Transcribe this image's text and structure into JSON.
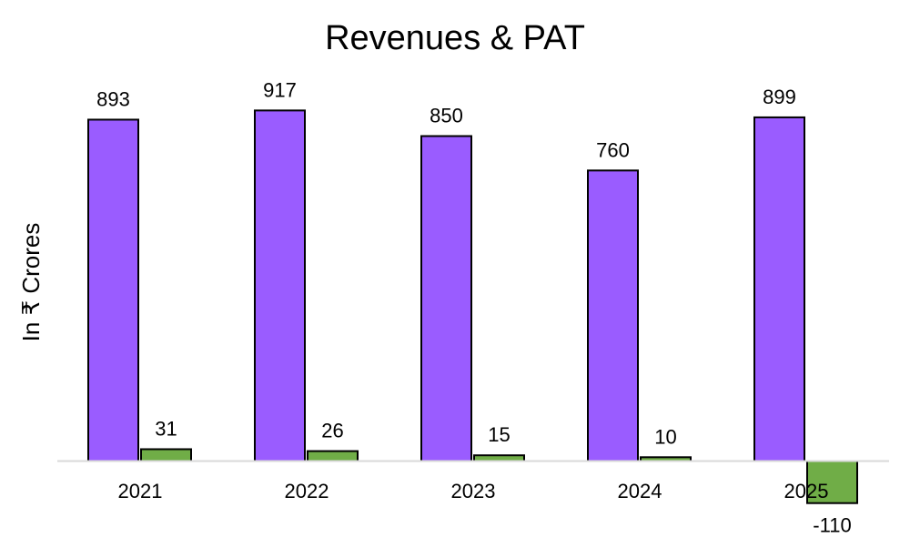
{
  "chart_data": {
    "type": "bar",
    "title": "Revenues & PAT",
    "xlabel": "",
    "ylabel": "In ₹ Crores",
    "categories": [
      "2021",
      "2022",
      "2023",
      "2024",
      "2025"
    ],
    "series": [
      {
        "values": [
          893,
          917,
          850,
          760,
          899
        ],
        "labels": [
          "893",
          "917",
          "850",
          "760",
          "899"
        ],
        "color": "#9a5cff"
      },
      {
        "values": [
          31,
          26,
          15,
          10,
          -110
        ],
        "labels": [
          "31",
          "26",
          "15",
          "10",
          "-110"
        ],
        "color": "#70ad47"
      }
    ],
    "ylim": [
      -110,
      917
    ],
    "grid": false,
    "legend": "none"
  }
}
